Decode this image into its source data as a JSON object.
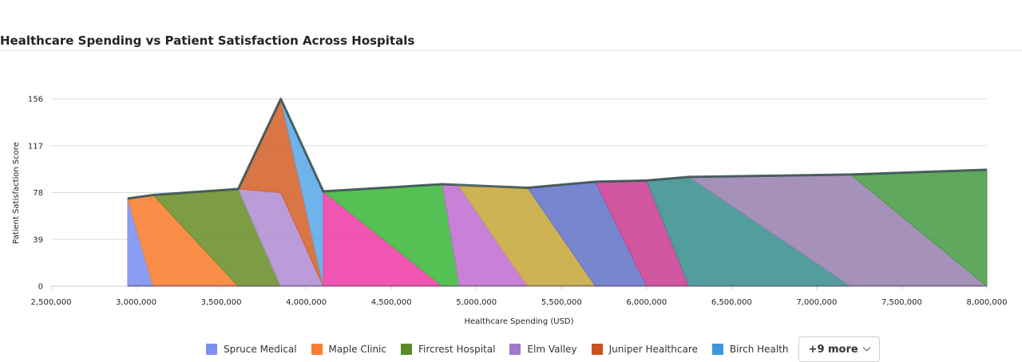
{
  "chart_data": {
    "type": "area",
    "title": "Healthcare Spending vs Patient Satisfaction Across Hospitals",
    "xlabel": "Healthcare Spending (USD)",
    "ylabel": "Patient Satisfaction Score",
    "xlim": [
      2500000,
      8000000
    ],
    "ylim": [
      0,
      156
    ],
    "x_ticks": [
      "2,500,000",
      "3,000,000",
      "3,500,000",
      "4,000,000",
      "4,500,000",
      "5,000,000",
      "5,500,000",
      "6,000,000",
      "6,500,000",
      "7,000,000",
      "7,500,000",
      "8,000,000"
    ],
    "y_ticks": [
      "0",
      "39",
      "78",
      "117",
      "156"
    ],
    "grid": true,
    "legend_position": "bottom",
    "outline": [
      [
        2950000,
        73
      ],
      [
        3100000,
        76
      ],
      [
        3600000,
        81
      ],
      [
        3850000,
        156
      ],
      [
        4100000,
        79
      ],
      [
        4800000,
        85
      ],
      [
        5300000,
        82
      ],
      [
        5700000,
        87
      ],
      [
        6000000,
        88
      ],
      [
        6250000,
        91
      ],
      [
        7200000,
        93
      ],
      [
        8000000,
        97
      ]
    ],
    "series": [
      {
        "name": "Spruce Medical",
        "color": "#7b8ff0",
        "polygon": [
          [
            2950000,
            0
          ],
          [
            2950000,
            73
          ],
          [
            3100000,
            0
          ]
        ]
      },
      {
        "name": "Maple Clinic",
        "color": "#f97e30",
        "polygon": [
          [
            2950000,
            73
          ],
          [
            3100000,
            76
          ],
          [
            3600000,
            0
          ],
          [
            3100000,
            0
          ]
        ]
      },
      {
        "name": "Fircrest Hospital",
        "color": "#6b8f2a",
        "polygon": [
          [
            3100000,
            76
          ],
          [
            3600000,
            81
          ],
          [
            3850000,
            0
          ],
          [
            3600000,
            0
          ]
        ]
      },
      {
        "name": "Elm Valley",
        "color": "#b08fd3",
        "polygon": [
          [
            3600000,
            81
          ],
          [
            3850000,
            78
          ],
          [
            4100000,
            0
          ],
          [
            3850000,
            0
          ]
        ]
      },
      {
        "name": "Juniper Healthcare",
        "color": "#d5622b",
        "polygon": [
          [
            3600000,
            81
          ],
          [
            3850000,
            156
          ],
          [
            4100000,
            0
          ],
          [
            3850000,
            78
          ]
        ]
      },
      {
        "name": "Birch Health",
        "color": "#5aa8e8",
        "polygon": [
          [
            3850000,
            156
          ],
          [
            4100000,
            79
          ],
          [
            4100000,
            0
          ]
        ]
      },
      {
        "name": "",
        "color": "#ee3fa6",
        "polygon": [
          [
            4100000,
            79
          ],
          [
            4800000,
            0
          ],
          [
            4100000,
            0
          ]
        ]
      },
      {
        "name": "",
        "color": "#3db83d",
        "polygon": [
          [
            4100000,
            79
          ],
          [
            4800000,
            85
          ],
          [
            4900000,
            0
          ],
          [
            4800000,
            0
          ]
        ]
      },
      {
        "name": "",
        "color": "#c06fd0",
        "polygon": [
          [
            4800000,
            85
          ],
          [
            4900000,
            83
          ],
          [
            5300000,
            0
          ],
          [
            4900000,
            0
          ]
        ]
      },
      {
        "name": "",
        "color": "#c6a93c",
        "polygon": [
          [
            4900000,
            83
          ],
          [
            5300000,
            82
          ],
          [
            5700000,
            0
          ],
          [
            5300000,
            0
          ]
        ]
      },
      {
        "name": "",
        "color": "#6574c8",
        "polygon": [
          [
            5300000,
            82
          ],
          [
            5700000,
            87
          ],
          [
            6000000,
            0
          ],
          [
            5700000,
            0
          ]
        ]
      },
      {
        "name": "",
        "color": "#c93f93",
        "polygon": [
          [
            5700000,
            87
          ],
          [
            6000000,
            88
          ],
          [
            6250000,
            0
          ],
          [
            6000000,
            0
          ]
        ]
      },
      {
        "name": "",
        "color": "#3c8f90",
        "polygon": [
          [
            6000000,
            88
          ],
          [
            6250000,
            91
          ],
          [
            7200000,
            0
          ],
          [
            6250000,
            0
          ]
        ]
      },
      {
        "name": "",
        "color": "#9a82b0",
        "polygon": [
          [
            6250000,
            91
          ],
          [
            7200000,
            93
          ],
          [
            8000000,
            0
          ],
          [
            7200000,
            0
          ]
        ]
      },
      {
        "name": "",
        "color": "#4a9c47",
        "polygon": [
          [
            7200000,
            93
          ],
          [
            8000000,
            97
          ],
          [
            8000000,
            0
          ]
        ]
      }
    ]
  },
  "legend": {
    "items": [
      {
        "label": "Spruce Medical",
        "color": "#7b8ff0"
      },
      {
        "label": "Maple Clinic",
        "color": "#f97e30"
      },
      {
        "label": "Fircrest Hospital",
        "color": "#5a8a25"
      },
      {
        "label": "Elm Valley",
        "color": "#9f7ac6"
      },
      {
        "label": "Juniper Healthcare",
        "color": "#c9531c"
      },
      {
        "label": "Birch Health",
        "color": "#3d97da"
      }
    ],
    "more_label": "+9 more"
  }
}
